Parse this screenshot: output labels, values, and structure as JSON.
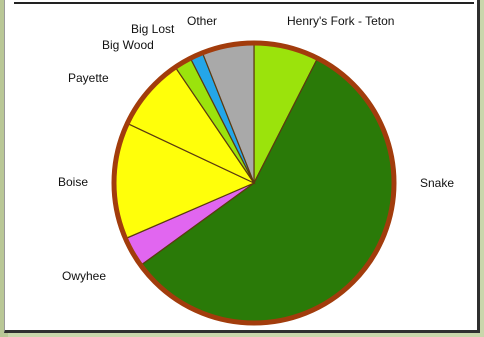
{
  "chart_data": {
    "type": "pie",
    "title": "",
    "slices": [
      {
        "label": "Henry's Fork - Teton",
        "value": 7.5,
        "color": "#9be30c"
      },
      {
        "label": "Snake",
        "value": 57.5,
        "color": "#2a7a08"
      },
      {
        "label": "Owyhee",
        "value": 3.5,
        "color": "#e166f0"
      },
      {
        "label": "Boise",
        "value": 13.5,
        "color": "#ffff0a"
      },
      {
        "label": "Payette",
        "value": 8.5,
        "color": "#ffff0a"
      },
      {
        "label": "Big Wood",
        "value": 2.0,
        "color": "#9be30c"
      },
      {
        "label": "Big Lost",
        "value": 1.5,
        "color": "#24a6e8"
      },
      {
        "label": "Other",
        "value": 6.0,
        "color": "#a9a9a9"
      }
    ],
    "start_angle_deg": 0,
    "direction": "clockwise",
    "rim_color": "#a23c0c",
    "divider_color": "#5b3a10"
  }
}
